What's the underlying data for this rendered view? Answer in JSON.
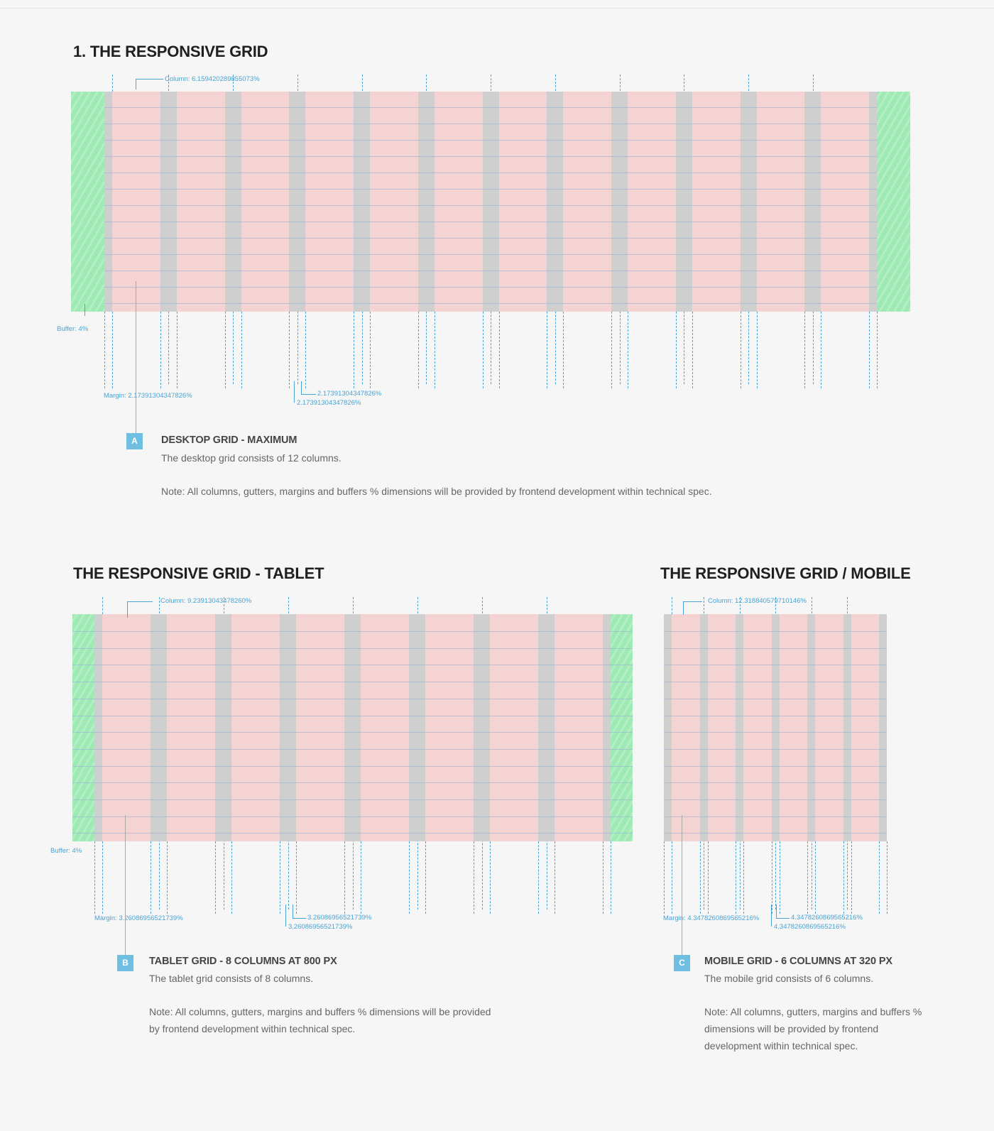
{
  "colors": {
    "background": "#f6f6f6",
    "buffer": "#9ee9b4",
    "column": "#f6d3d3",
    "gutter": "#cfcfcf",
    "guide": "#4aa3d2",
    "badge": "#6fbfe2",
    "heading": "#1f1f1f"
  },
  "icons": {
    "guide-line": "dashed-vertical-line",
    "badge": "square-letter-badge"
  },
  "desktop": {
    "title": "1. THE RESPONSIVE GRID",
    "column_count": 12,
    "labels": {
      "column": "Column: 6.159420289855073%",
      "buffer": "Buffer: 4%",
      "margin": "Margin: 2.17391304347826%",
      "gutter_a": "2.17391304347826%",
      "gutter_b": "2.17391304347826%"
    },
    "badge": "A",
    "heading": "DESKTOP GRID - MAXIMUM",
    "description": "The desktop grid consists of 12 columns.",
    "note": "Note: All columns, gutters, margins and buffers % dimensions will be provided by frontend development within technical spec."
  },
  "tablet": {
    "title": "THE RESPONSIVE GRID - TABLET",
    "column_count": 8,
    "labels": {
      "column": "Column: 9.23913043478260%",
      "buffer": "Buffer: 4%",
      "margin": "Margin: 3.26086956521739%",
      "gutter_a": "3.26086956521739%",
      "gutter_b": "3.26086956521739%"
    },
    "badge": "B",
    "heading": "TABLET GRID - 8 COLUMNS AT 800 PX",
    "description": "The tablet grid consists of 8 columns.",
    "note": "Note: All columns, gutters, margins and buffers % dimensions will be provided by frontend development within technical spec."
  },
  "mobile": {
    "title": "THE RESPONSIVE GRID / MOBILE",
    "column_count": 6,
    "labels": {
      "column": "Column: 12.318840579710146%",
      "margin": "Margin: 4.3478260869565216%",
      "gutter_a": "4.3478260869565216%",
      "gutter_b": "4.3478260869565216%"
    },
    "badge": "C",
    "heading": "MOBILE GRID - 6 COLUMNS AT 320 PX",
    "description": "The mobile grid consists of 6 columns.",
    "note": "Note: All columns, gutters, margins and buffers % dimensions will be provided by frontend development within technical spec."
  }
}
